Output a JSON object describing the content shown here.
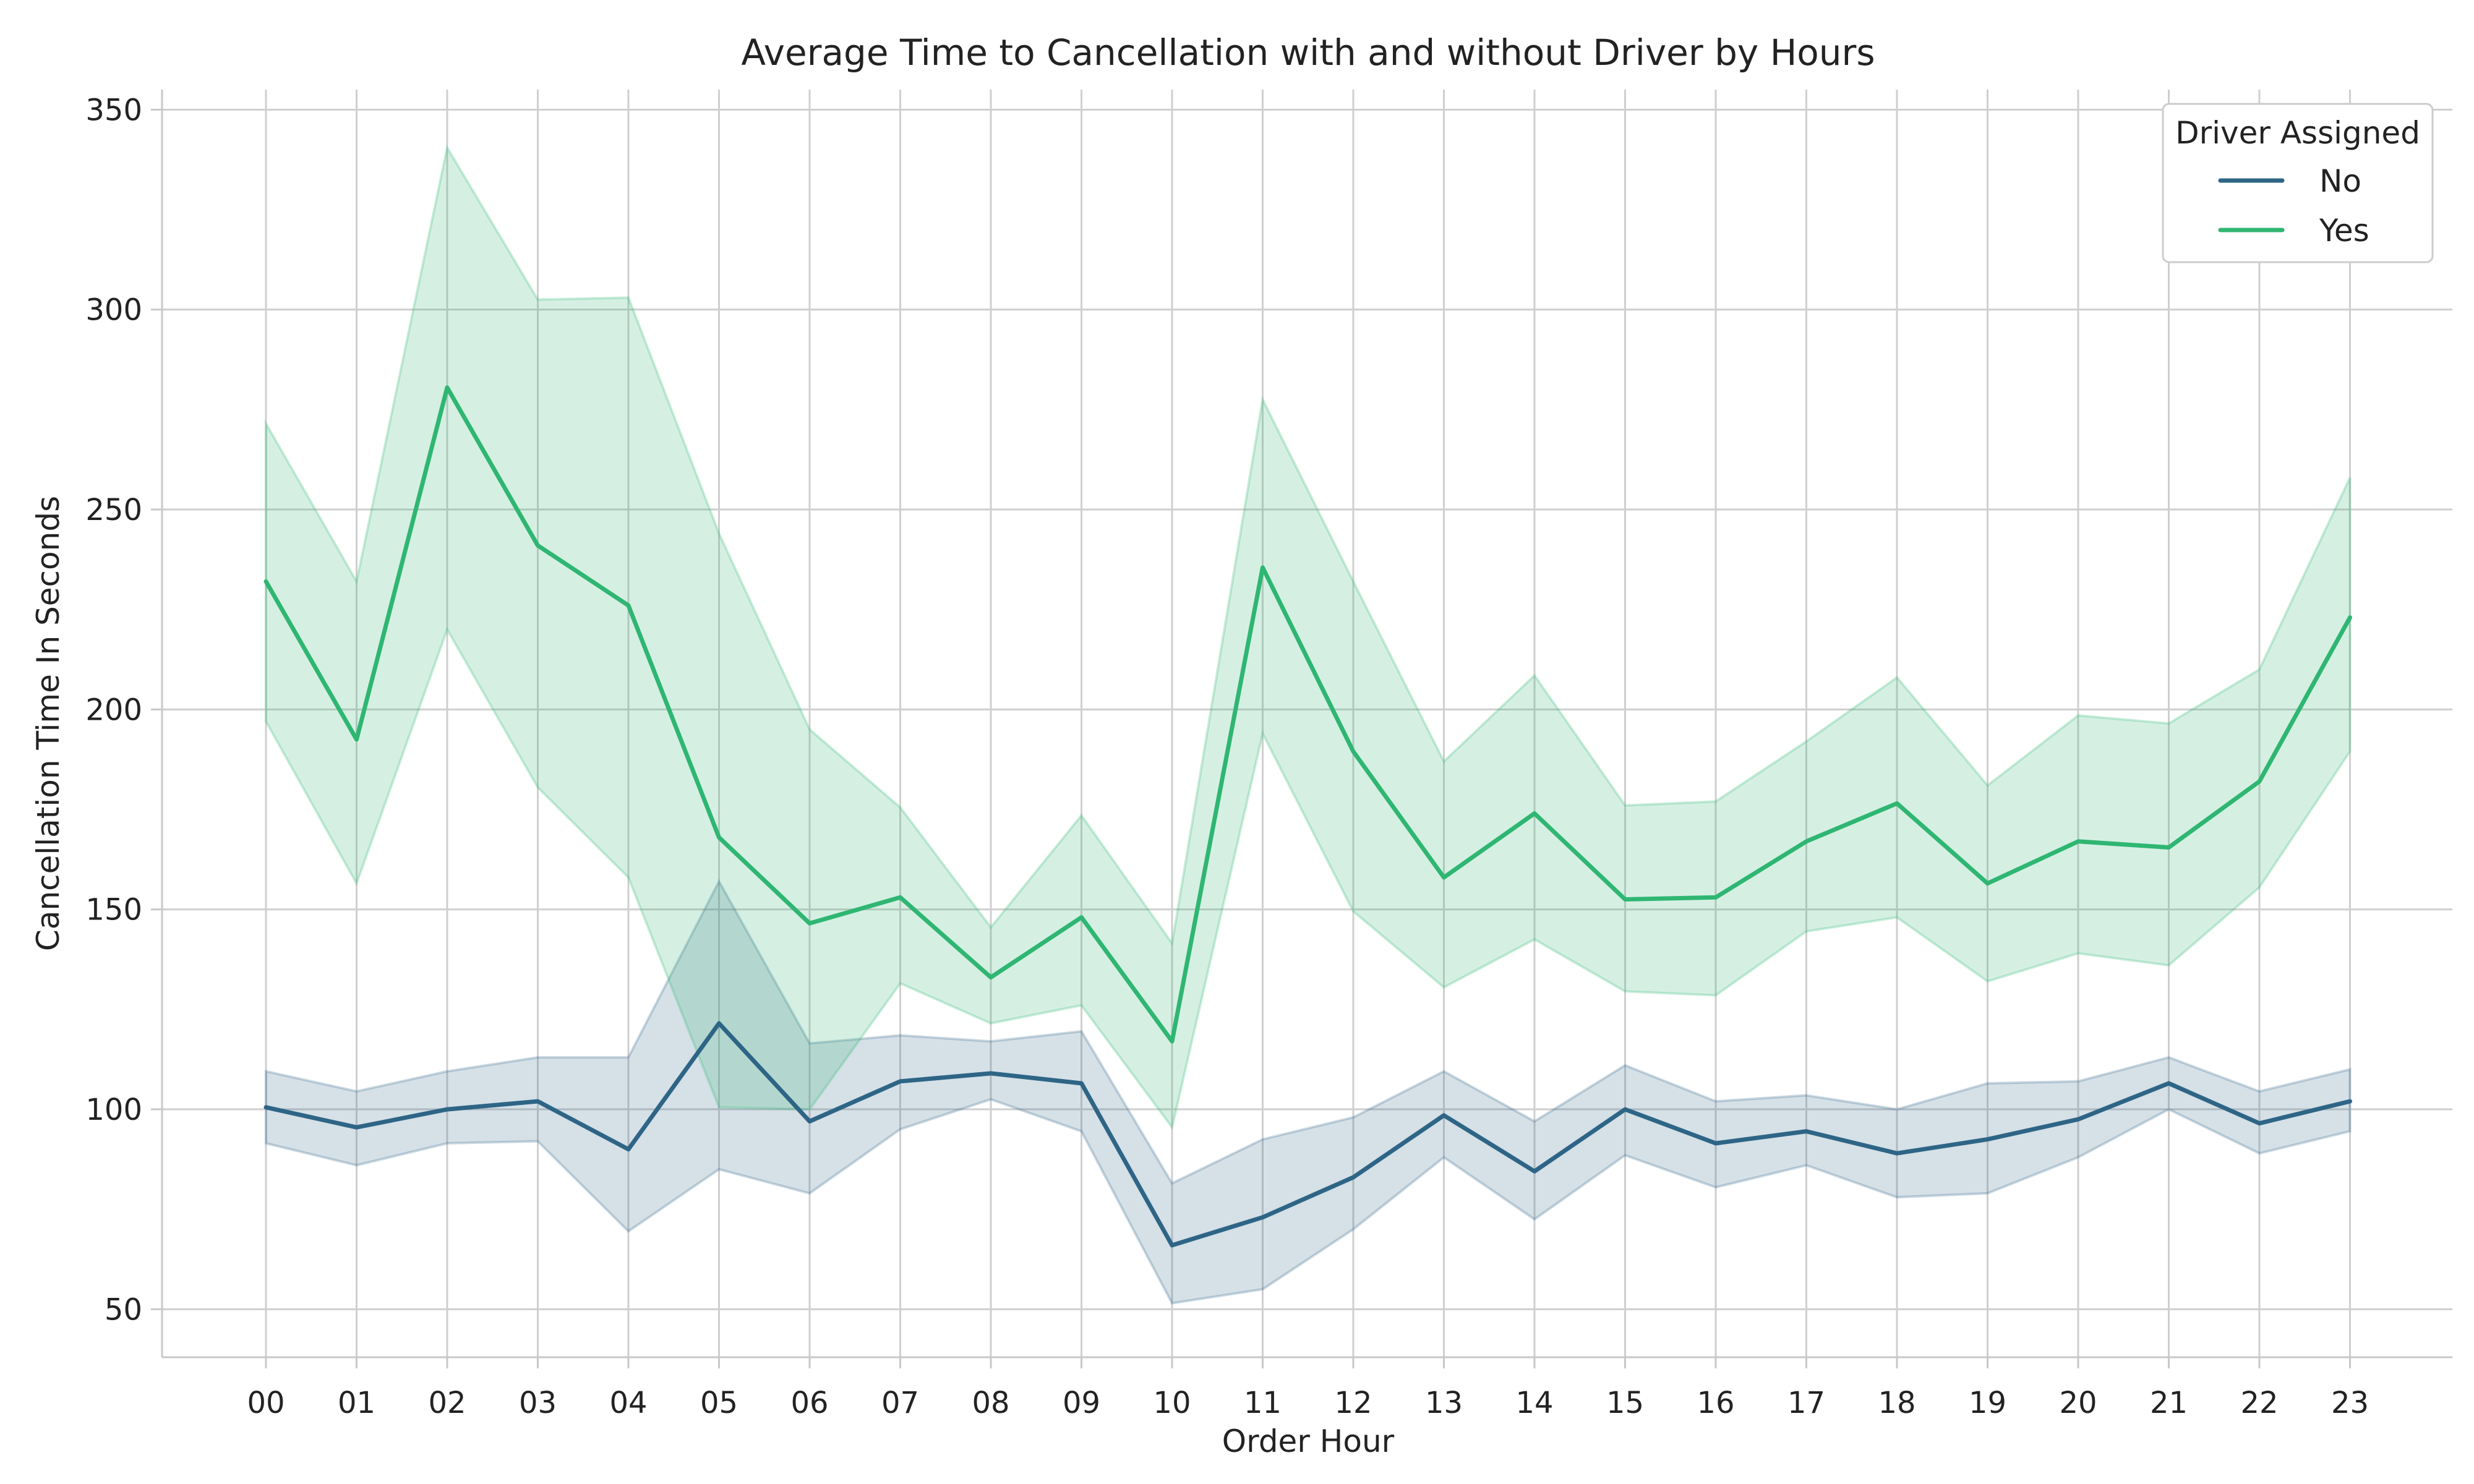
{
  "chart_data": {
    "type": "line",
    "title": "Average Time to Cancellation with and without Driver by Hours",
    "xlabel": "Order Hour",
    "ylabel": "Cancellation Time In Seconds",
    "categories": [
      "00",
      "01",
      "02",
      "03",
      "04",
      "05",
      "06",
      "07",
      "08",
      "09",
      "10",
      "11",
      "12",
      "13",
      "14",
      "15",
      "16",
      "17",
      "18",
      "19",
      "20",
      "21",
      "22",
      "23"
    ],
    "ylim": [
      38,
      355
    ],
    "yticks": [
      50,
      100,
      150,
      200,
      250,
      300,
      350
    ],
    "grid": true,
    "legend": {
      "title": "Driver Assigned",
      "placement": "top-right"
    },
    "series": [
      {
        "name": "No",
        "color": "#2e6586",
        "values": [
          100.5,
          95.5,
          100,
          102,
          90,
          121.5,
          97,
          107,
          109,
          106.5,
          66,
          73,
          83,
          98.5,
          84.5,
          100,
          91.5,
          94.5,
          89,
          92.5,
          97.5,
          106.5,
          96.5,
          102
        ],
        "ci_upper": [
          109.5,
          104.5,
          109.5,
          113,
          113,
          157,
          116.5,
          118.5,
          117,
          119.5,
          81.5,
          92.5,
          98,
          109.5,
          97,
          111,
          102,
          103.5,
          100,
          106.5,
          107,
          113,
          104.5,
          110
        ],
        "ci_lower": [
          91.5,
          86,
          91.5,
          92,
          69.5,
          85,
          79,
          95,
          102.5,
          94.5,
          51.5,
          55,
          70,
          88,
          72.5,
          88.5,
          80.5,
          86,
          78,
          79,
          88,
          100,
          89,
          94.5
        ]
      },
      {
        "name": "Yes",
        "color": "#2fb672",
        "values": [
          232,
          192.5,
          280.5,
          241,
          226,
          168,
          146.5,
          153,
          133,
          148,
          117,
          235.5,
          189.5,
          158,
          174,
          152.5,
          153,
          167,
          176.5,
          156.5,
          167,
          165.5,
          182,
          223
        ],
        "ci_upper": [
          271.5,
          232,
          340.5,
          302.5,
          303,
          244,
          195,
          175.5,
          145.5,
          173.5,
          141.5,
          277.5,
          232,
          187,
          208.5,
          176,
          177,
          192,
          208,
          181,
          198.5,
          196.5,
          210,
          258
        ],
        "ci_lower": [
          197,
          156.5,
          220,
          180.5,
          158,
          100.5,
          100,
          131.5,
          121.5,
          126,
          95.5,
          194,
          149.5,
          130.5,
          142.5,
          129.5,
          128.5,
          144.5,
          148,
          132,
          139,
          136,
          155.5,
          189.5
        ]
      }
    ]
  }
}
